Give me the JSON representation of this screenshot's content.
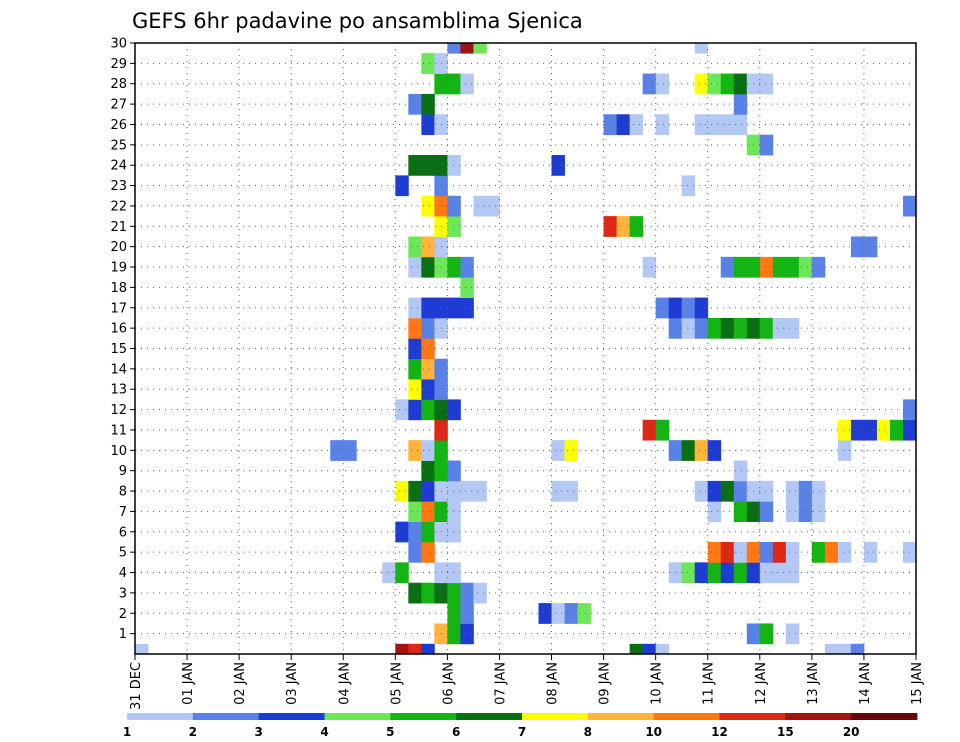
{
  "chart_data": {
    "type": "heatmap",
    "title": "GEFS 6hr padavine po ansamblima Sjenica",
    "xlabel": "",
    "ylabel": "",
    "x_ticks": [
      "31 DEC",
      "01 JAN",
      "02 JAN",
      "03 JAN",
      "04 JAN",
      "05 JAN",
      "06 JAN",
      "07 JAN",
      "08 JAN",
      "09 JAN",
      "10 JAN",
      "11 JAN",
      "12 JAN",
      "13 JAN",
      "14 JAN",
      "15 JAN"
    ],
    "y_ticks": [
      "1",
      "2",
      "3",
      "4",
      "5",
      "6",
      "7",
      "8",
      "9",
      "10",
      "11",
      "12",
      "13",
      "14",
      "15",
      "16",
      "17",
      "18",
      "19",
      "20",
      "21",
      "22",
      "23",
      "24",
      "25",
      "26",
      "27",
      "28",
      "29",
      "30"
    ],
    "x_range_days": [
      0,
      15
    ],
    "y_range": [
      0,
      30
    ],
    "grid": true,
    "colorbar": {
      "levels": [
        "1",
        "2",
        "3",
        "4",
        "5",
        "6",
        "7",
        "8",
        "10",
        "12",
        "15",
        "20"
      ],
      "colors": [
        "#b4c8f5",
        "#5a82e6",
        "#1e3cd2",
        "#6ee65a",
        "#14b414",
        "#0a6e14",
        "#ffff00",
        "#ffb43c",
        "#ff7814",
        "#dc2814",
        "#a01414",
        "#640a0a"
      ]
    },
    "cells_format": "[member, start_day_since_31DEC, end_day_since_31DEC, color_class]",
    "cells": [
      [
        0,
        0.0,
        0.25,
        1
      ],
      [
        0,
        5.0,
        5.25,
        11
      ],
      [
        0,
        5.25,
        5.5,
        10
      ],
      [
        0,
        5.5,
        5.75,
        3
      ],
      [
        0,
        9.5,
        9.75,
        6
      ],
      [
        0,
        9.75,
        10.0,
        3
      ],
      [
        0,
        10.0,
        10.25,
        1
      ],
      [
        0,
        13.25,
        13.75,
        1
      ],
      [
        0,
        13.75,
        14.0,
        2
      ],
      [
        1,
        5.75,
        6.0,
        8
      ],
      [
        1,
        6.0,
        6.25,
        5
      ],
      [
        1,
        6.25,
        6.5,
        3
      ],
      [
        1,
        11.75,
        12.0,
        2
      ],
      [
        1,
        12.0,
        12.25,
        5
      ],
      [
        1,
        12.5,
        12.75,
        1
      ],
      [
        2,
        6.0,
        6.25,
        5
      ],
      [
        2,
        6.25,
        6.5,
        2
      ],
      [
        2,
        7.75,
        8.0,
        3
      ],
      [
        2,
        8.0,
        8.25,
        1
      ],
      [
        2,
        8.25,
        8.5,
        2
      ],
      [
        2,
        8.5,
        8.75,
        4
      ],
      [
        3,
        5.25,
        5.5,
        6
      ],
      [
        3,
        5.5,
        5.75,
        5
      ],
      [
        3,
        5.75,
        6.0,
        6
      ],
      [
        3,
        6.0,
        6.25,
        5
      ],
      [
        3,
        6.25,
        6.5,
        2
      ],
      [
        3,
        6.5,
        6.75,
        1
      ],
      [
        4,
        4.75,
        5.0,
        1
      ],
      [
        4,
        5.0,
        5.25,
        5
      ],
      [
        4,
        5.75,
        6.25,
        1
      ],
      [
        4,
        10.25,
        10.5,
        1
      ],
      [
        4,
        10.5,
        10.75,
        4
      ],
      [
        4,
        10.75,
        11.0,
        3
      ],
      [
        4,
        11.0,
        11.25,
        5
      ],
      [
        4,
        11.25,
        11.5,
        3
      ],
      [
        4,
        11.5,
        11.75,
        5
      ],
      [
        4,
        11.75,
        12.0,
        3
      ],
      [
        4,
        12.0,
        12.75,
        1
      ],
      [
        5,
        5.25,
        5.5,
        2
      ],
      [
        5,
        5.5,
        5.75,
        9
      ],
      [
        5,
        11.0,
        11.25,
        9
      ],
      [
        5,
        11.25,
        11.5,
        10
      ],
      [
        5,
        11.5,
        11.75,
        1
      ],
      [
        5,
        11.75,
        12.0,
        9
      ],
      [
        5,
        12.0,
        12.25,
        2
      ],
      [
        5,
        12.25,
        12.5,
        10
      ],
      [
        5,
        12.5,
        12.75,
        1
      ],
      [
        5,
        13.0,
        13.25,
        5
      ],
      [
        5,
        13.25,
        13.5,
        9
      ],
      [
        5,
        13.5,
        13.75,
        1
      ],
      [
        5,
        14.0,
        14.25,
        1
      ],
      [
        5,
        14.75,
        15.0,
        1
      ],
      [
        6,
        5.0,
        5.25,
        3
      ],
      [
        6,
        5.25,
        5.5,
        2
      ],
      [
        6,
        5.5,
        5.75,
        5
      ],
      [
        6,
        5.75,
        6.25,
        1
      ],
      [
        7,
        5.25,
        5.5,
        4
      ],
      [
        7,
        5.5,
        5.75,
        9
      ],
      [
        7,
        5.75,
        6.0,
        5
      ],
      [
        7,
        6.0,
        6.25,
        1
      ],
      [
        7,
        11.0,
        11.25,
        1
      ],
      [
        7,
        11.5,
        11.75,
        5
      ],
      [
        7,
        11.75,
        12.0,
        6
      ],
      [
        7,
        12.0,
        12.25,
        2
      ],
      [
        7,
        12.5,
        12.75,
        1
      ],
      [
        7,
        12.75,
        13.0,
        2
      ],
      [
        7,
        13.0,
        13.25,
        1
      ],
      [
        8,
        5.0,
        5.25,
        7
      ],
      [
        8,
        5.25,
        5.5,
        6
      ],
      [
        8,
        5.5,
        5.75,
        3
      ],
      [
        8,
        5.75,
        6.75,
        1
      ],
      [
        8,
        8.0,
        8.5,
        1
      ],
      [
        8,
        10.75,
        11.0,
        1
      ],
      [
        8,
        11.0,
        11.25,
        3
      ],
      [
        8,
        11.25,
        11.5,
        6
      ],
      [
        8,
        11.5,
        11.75,
        2
      ],
      [
        8,
        11.75,
        12.25,
        1
      ],
      [
        8,
        12.5,
        12.75,
        1
      ],
      [
        8,
        12.75,
        13.0,
        2
      ],
      [
        8,
        13.0,
        13.25,
        1
      ],
      [
        9,
        5.5,
        5.75,
        6
      ],
      [
        9,
        5.75,
        6.0,
        5
      ],
      [
        9,
        6.0,
        6.25,
        2
      ],
      [
        9,
        11.5,
        11.75,
        1
      ],
      [
        10,
        3.75,
        4.25,
        2
      ],
      [
        10,
        5.25,
        5.5,
        8
      ],
      [
        10,
        5.5,
        5.75,
        1
      ],
      [
        10,
        5.75,
        6.0,
        5
      ],
      [
        10,
        8.0,
        8.25,
        1
      ],
      [
        10,
        8.25,
        8.5,
        7
      ],
      [
        10,
        10.25,
        10.5,
        2
      ],
      [
        10,
        10.5,
        10.75,
        6
      ],
      [
        10,
        10.75,
        11.0,
        8
      ],
      [
        10,
        11.0,
        11.25,
        3
      ],
      [
        10,
        13.5,
        13.75,
        1
      ],
      [
        11,
        5.75,
        6.0,
        10
      ],
      [
        11,
        9.75,
        10.0,
        10
      ],
      [
        11,
        10.0,
        10.25,
        5
      ],
      [
        11,
        13.5,
        13.75,
        7
      ],
      [
        11,
        13.75,
        14.25,
        3
      ],
      [
        11,
        14.25,
        14.5,
        7
      ],
      [
        11,
        14.5,
        14.75,
        5
      ],
      [
        11,
        14.75,
        15.0,
        3
      ],
      [
        12,
        5.0,
        5.25,
        1
      ],
      [
        12,
        5.25,
        5.5,
        3
      ],
      [
        12,
        5.5,
        5.75,
        5
      ],
      [
        12,
        5.75,
        6.0,
        6
      ],
      [
        12,
        6.0,
        6.25,
        3
      ],
      [
        12,
        14.75,
        15.0,
        2
      ],
      [
        13,
        5.25,
        5.5,
        7
      ],
      [
        13,
        5.5,
        5.75,
        3
      ],
      [
        13,
        5.75,
        6.0,
        2
      ],
      [
        14,
        5.25,
        5.5,
        5
      ],
      [
        14,
        5.5,
        5.75,
        8
      ],
      [
        14,
        5.75,
        6.0,
        2
      ],
      [
        15,
        5.25,
        5.5,
        3
      ],
      [
        15,
        5.5,
        5.75,
        9
      ],
      [
        16,
        5.25,
        5.5,
        9
      ],
      [
        16,
        5.5,
        5.75,
        2
      ],
      [
        16,
        5.75,
        6.0,
        1
      ],
      [
        16,
        10.25,
        10.5,
        2
      ],
      [
        16,
        10.5,
        10.75,
        1
      ],
      [
        16,
        10.75,
        11.0,
        2
      ],
      [
        16,
        11.0,
        11.25,
        5
      ],
      [
        16,
        11.25,
        11.5,
        6
      ],
      [
        16,
        11.5,
        11.75,
        5
      ],
      [
        16,
        11.75,
        12.0,
        6
      ],
      [
        16,
        12.0,
        12.25,
        5
      ],
      [
        16,
        12.25,
        12.75,
        1
      ],
      [
        17,
        5.25,
        5.5,
        1
      ],
      [
        17,
        5.5,
        5.75,
        3
      ],
      [
        17,
        5.75,
        6.5,
        3
      ],
      [
        17,
        10.0,
        10.25,
        2
      ],
      [
        17,
        10.25,
        10.5,
        3
      ],
      [
        17,
        10.5,
        10.75,
        2
      ],
      [
        17,
        10.75,
        11.0,
        3
      ],
      [
        18,
        6.25,
        6.5,
        4
      ],
      [
        19,
        5.25,
        5.5,
        1
      ],
      [
        19,
        5.5,
        5.75,
        6
      ],
      [
        19,
        5.75,
        6.0,
        4
      ],
      [
        19,
        6.0,
        6.25,
        5
      ],
      [
        19,
        6.25,
        6.5,
        2
      ],
      [
        19,
        9.75,
        10.0,
        1
      ],
      [
        19,
        11.25,
        11.5,
        2
      ],
      [
        19,
        11.5,
        12.0,
        5
      ],
      [
        19,
        12.0,
        12.25,
        9
      ],
      [
        19,
        12.25,
        12.75,
        5
      ],
      [
        19,
        12.75,
        13.0,
        4
      ],
      [
        19,
        13.0,
        13.25,
        2
      ],
      [
        20,
        5.25,
        5.5,
        4
      ],
      [
        20,
        5.5,
        5.75,
        8
      ],
      [
        20,
        5.75,
        6.0,
        1
      ],
      [
        20,
        13.75,
        14.25,
        2
      ],
      [
        21,
        5.75,
        6.0,
        7
      ],
      [
        21,
        6.0,
        6.25,
        4
      ],
      [
        21,
        9.0,
        9.25,
        10
      ],
      [
        21,
        9.25,
        9.5,
        8
      ],
      [
        21,
        9.5,
        9.75,
        5
      ],
      [
        22,
        5.5,
        5.75,
        7
      ],
      [
        22,
        5.75,
        6.0,
        9
      ],
      [
        22,
        6.0,
        6.25,
        2
      ],
      [
        22,
        6.5,
        7.0,
        1
      ],
      [
        22,
        14.75,
        15.0,
        2
      ],
      [
        23,
        5.0,
        5.25,
        3
      ],
      [
        23,
        5.75,
        6.0,
        2
      ],
      [
        23,
        10.5,
        10.75,
        1
      ],
      [
        24,
        5.25,
        6.0,
        6
      ],
      [
        24,
        6.0,
        6.25,
        1
      ],
      [
        24,
        8.0,
        8.25,
        3
      ],
      [
        25,
        11.75,
        12.0,
        4
      ],
      [
        25,
        12.0,
        12.25,
        2
      ],
      [
        26,
        5.5,
        5.75,
        3
      ],
      [
        26,
        5.75,
        6.0,
        1
      ],
      [
        26,
        9.0,
        9.25,
        2
      ],
      [
        26,
        9.25,
        9.5,
        3
      ],
      [
        26,
        9.5,
        9.75,
        1
      ],
      [
        26,
        10.0,
        10.25,
        1
      ],
      [
        26,
        10.75,
        11.5,
        1
      ],
      [
        26,
        11.5,
        11.75,
        1
      ],
      [
        27,
        5.25,
        5.5,
        2
      ],
      [
        27,
        5.5,
        5.75,
        6
      ],
      [
        27,
        11.5,
        11.75,
        2
      ],
      [
        28,
        5.75,
        6.25,
        5
      ],
      [
        28,
        6.25,
        6.5,
        1
      ],
      [
        28,
        9.75,
        10.0,
        2
      ],
      [
        28,
        10.0,
        10.25,
        1
      ],
      [
        28,
        10.75,
        11.0,
        7
      ],
      [
        28,
        11.0,
        11.25,
        4
      ],
      [
        28,
        11.25,
        11.5,
        5
      ],
      [
        28,
        11.5,
        11.75,
        6
      ],
      [
        28,
        11.75,
        12.25,
        1
      ],
      [
        29,
        5.5,
        5.75,
        4
      ],
      [
        29,
        5.75,
        6.0,
        1
      ],
      [
        30,
        6.0,
        6.25,
        2
      ],
      [
        30,
        6.25,
        6.5,
        11
      ],
      [
        30,
        6.5,
        6.75,
        4
      ],
      [
        30,
        10.75,
        11.0,
        1
      ]
    ]
  }
}
